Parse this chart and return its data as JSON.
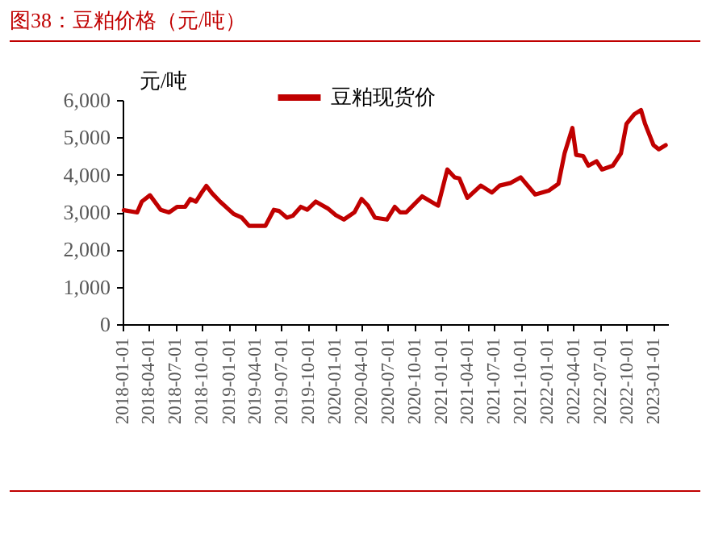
{
  "chart_data": {
    "type": "line",
    "title": "图38：豆粕价格（元/吨）",
    "ylabel": "元/吨",
    "legend": "top",
    "x": [
      "2018-01-05",
      "2018-02-20",
      "2018-03-08",
      "2018-04-05",
      "2018-05-12",
      "2018-06-10",
      "2018-07-07",
      "2018-08-04",
      "2018-08-22",
      "2018-09-10",
      "2018-09-28",
      "2018-10-16",
      "2018-11-05",
      "2018-12-02",
      "2019-01-18",
      "2019-02-15",
      "2019-03-12",
      "2019-05-07",
      "2019-06-05",
      "2019-06-23",
      "2019-07-20",
      "2019-08-09",
      "2019-09-06",
      "2019-09-28",
      "2019-10-27",
      "2019-12-07",
      "2020-01-04",
      "2020-02-01",
      "2020-03-08",
      "2020-04-02",
      "2020-04-24",
      "2020-05-18",
      "2020-06-28",
      "2020-07-25",
      "2020-08-13",
      "2020-09-02",
      "2020-10-27",
      "2020-12-21",
      "2021-01-22",
      "2021-02-16",
      "2021-03-04",
      "2021-04-01",
      "2021-05-17",
      "2021-06-24",
      "2021-07-21",
      "2021-08-28",
      "2021-10-01",
      "2021-11-20",
      "2022-01-05",
      "2022-02-08",
      "2022-03-01",
      "2022-03-28",
      "2022-04-10",
      "2022-05-04",
      "2022-05-22",
      "2022-06-19",
      "2022-07-08",
      "2022-08-14",
      "2022-09-11",
      "2022-09-30",
      "2022-10-27",
      "2022-11-19",
      "2022-12-03",
      "2023-01-01",
      "2023-01-19",
      "2023-02-12"
    ],
    "series": [
      {
        "name": "豆粕现货价",
        "color": "#c00000",
        "values": [
          3050,
          2990,
          3280,
          3450,
          3060,
          2990,
          3140,
          3140,
          3350,
          3280,
          3500,
          3700,
          3500,
          3280,
          2950,
          2850,
          2630,
          2630,
          3060,
          3030,
          2850,
          2900,
          3140,
          3060,
          3280,
          3100,
          2920,
          2800,
          2990,
          3350,
          3170,
          2850,
          2800,
          3140,
          2990,
          2990,
          3420,
          3170,
          4140,
          3930,
          3900,
          3380,
          3710,
          3520,
          3710,
          3780,
          3930,
          3470,
          3570,
          3760,
          4570,
          5250,
          4530,
          4500,
          4240,
          4360,
          4140,
          4240,
          4570,
          5360,
          5620,
          5730,
          5360,
          4790,
          4680,
          4790
        ]
      }
    ],
    "xlim": [
      "2018-01-01",
      "2023-02-20"
    ],
    "xticks": [
      "2018-01-01",
      "2018-04-01",
      "2018-07-01",
      "2018-10-01",
      "2019-01-01",
      "2019-04-01",
      "2019-07-01",
      "2019-10-01",
      "2020-01-01",
      "2020-04-01",
      "2020-07-01",
      "2020-10-01",
      "2021-01-01",
      "2021-04-01",
      "2021-07-01",
      "2021-10-01",
      "2022-01-01",
      "2022-04-01",
      "2022-07-01",
      "2022-10-01",
      "2023-01-01"
    ],
    "ylim": [
      0,
      6000
    ],
    "yticks": [
      {
        "value": 0,
        "label": "0"
      },
      {
        "value": 1000,
        "label": "1,000"
      },
      {
        "value": 2000,
        "label": "2,000"
      },
      {
        "value": 3000,
        "label": "3,000"
      },
      {
        "value": 4000,
        "label": "4,000"
      },
      {
        "value": 5000,
        "label": "5,000"
      },
      {
        "value": 6000,
        "label": "6,000"
      }
    ]
  }
}
